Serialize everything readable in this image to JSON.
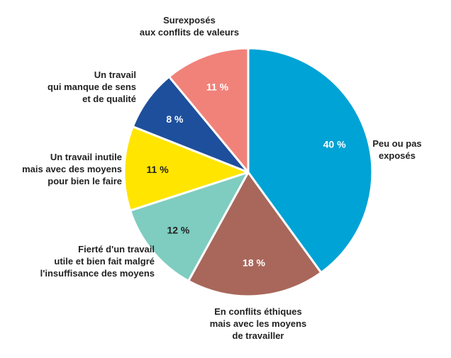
{
  "chart_data": {
    "type": "pie",
    "title": "",
    "start_angle_deg": 0,
    "direction": "clockwise",
    "slices": [
      {
        "value": 40,
        "value_label": "40 %",
        "label_lines": [
          "Peu ou pas",
          "exposés"
        ],
        "color": "#00A3D5",
        "pct_color": "#ffffff"
      },
      {
        "value": 18,
        "value_label": "18 %",
        "label_lines": [
          "En conflits éthiques",
          "mais avec les moyens",
          "de travailler"
        ],
        "color": "#A8675A",
        "pct_color": "#ffffff"
      },
      {
        "value": 12,
        "value_label": "12 %",
        "label_lines": [
          "Fierté d'un travail",
          "utile et bien fait malgré",
          "l'insuffisance des moyens"
        ],
        "color": "#7ECDC0",
        "pct_color": "#222222"
      },
      {
        "value": 11,
        "value_label": "11 %",
        "label_lines": [
          "Un travail inutile",
          "mais avec des moyens",
          "pour bien le faire"
        ],
        "color": "#FFE500",
        "pct_color": "#222222"
      },
      {
        "value": 8,
        "value_label": "8 %",
        "label_lines": [
          "Un travail",
          "qui manque de sens",
          "et de qualité"
        ],
        "color": "#1E4F9C",
        "pct_color": "#ffffff"
      },
      {
        "value": 11,
        "value_label": "11 %",
        "label_lines": [
          "Surexposés",
          "aux conflits de valeurs"
        ],
        "color": "#F0827A",
        "pct_color": "#ffffff"
      }
    ]
  }
}
